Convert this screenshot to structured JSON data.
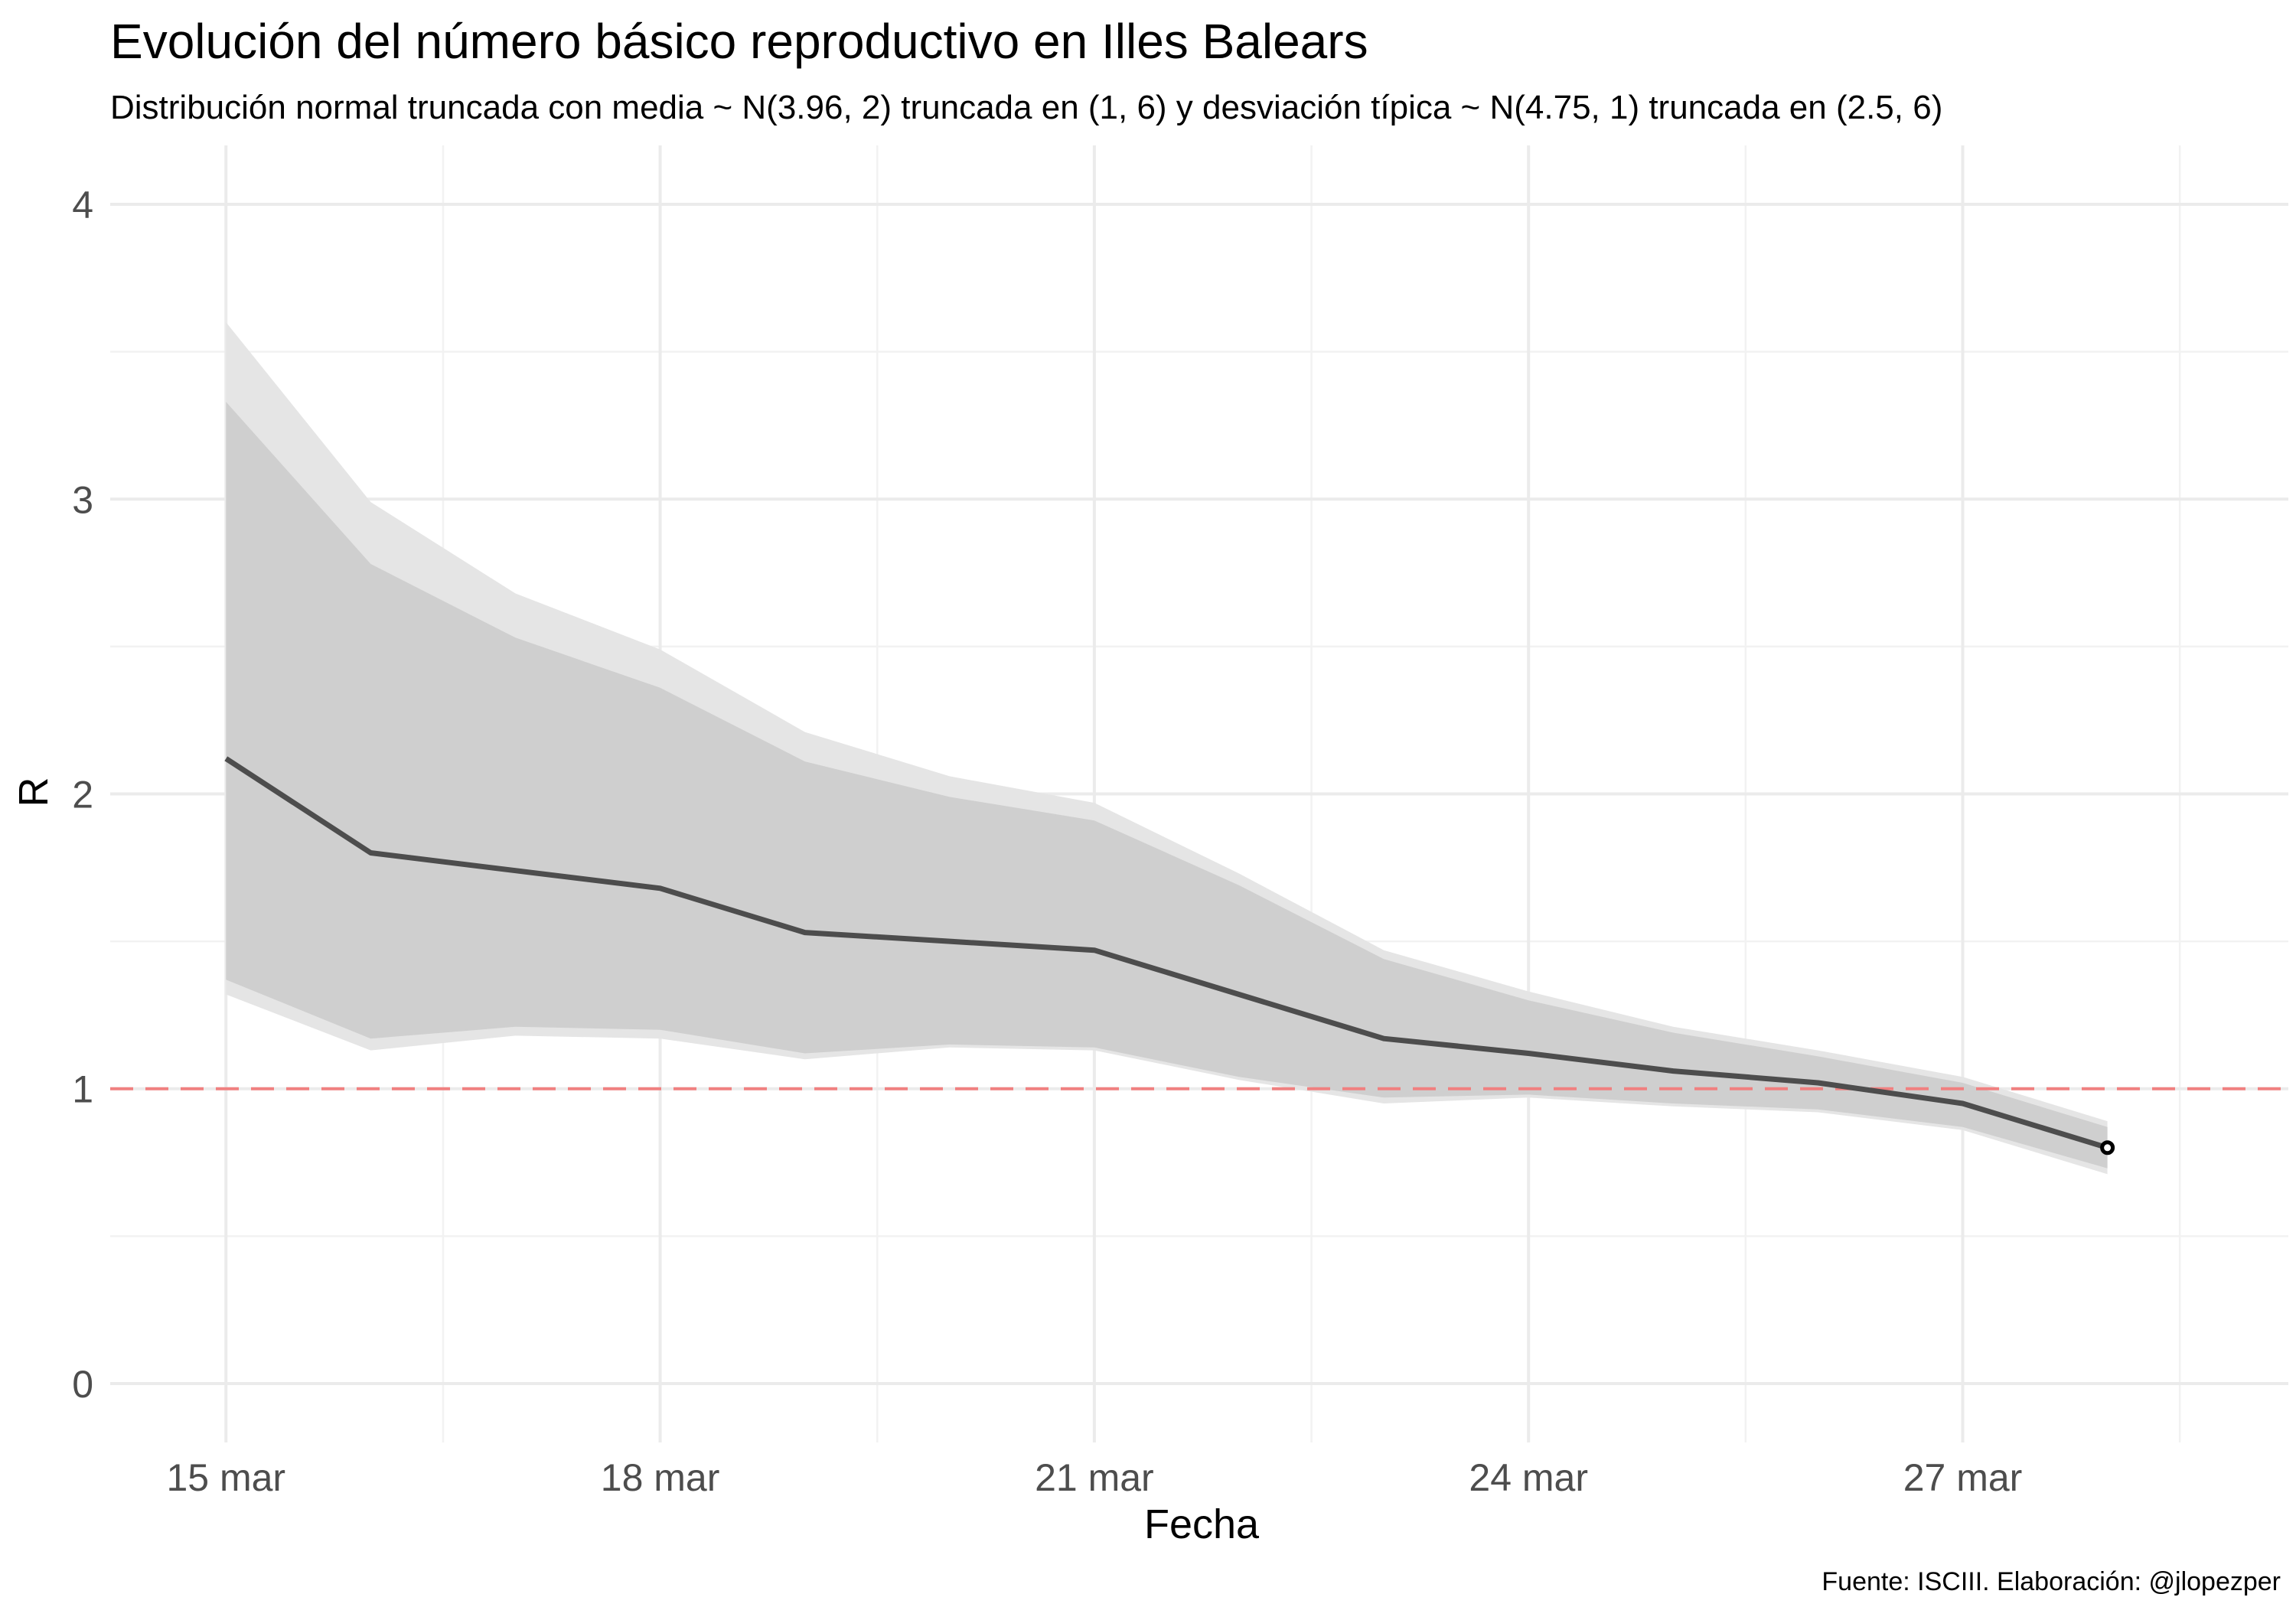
{
  "chart_data": {
    "type": "line",
    "title": "Evolución del número básico reproductivo en Illes Balears",
    "subtitle": "Distribución normal truncada con media ~ N(3.96, 2) truncada en (1, 6) y desviación típica ~ N(4.75, 1) truncada en (2.5, 6)",
    "xlabel": "Fecha",
    "ylabel": "R",
    "caption": "Fuente: ISCIII. Elaboración: @jlopezper",
    "x_ticks": [
      {
        "label": "15 mar",
        "day": 15
      },
      {
        "label": "18 mar",
        "day": 18
      },
      {
        "label": "21 mar",
        "day": 21
      },
      {
        "label": "24 mar",
        "day": 24
      },
      {
        "label": "27 mar",
        "day": 27
      }
    ],
    "y_ticks": [
      0,
      1,
      2,
      3,
      4
    ],
    "xlim": [
      "2020-03-14",
      "2020-03-29"
    ],
    "ylim": [
      -0.2,
      4.2
    ],
    "grid": true,
    "reference_line": {
      "y": 1,
      "color": "#f08080",
      "style": "dashed"
    },
    "dates": [
      "15 mar",
      "16 mar",
      "17 mar",
      "18 mar",
      "19 mar",
      "20 mar",
      "21 mar",
      "22 mar",
      "23 mar",
      "24 mar",
      "25 mar",
      "26 mar",
      "27 mar",
      "28 mar"
    ],
    "days": [
      15,
      16,
      17,
      18,
      19,
      20,
      21,
      22,
      23,
      24,
      25,
      26,
      27,
      28
    ],
    "series": [
      {
        "name": "R",
        "color": "#4d4d4d",
        "values": [
          2.12,
          1.8,
          1.74,
          1.68,
          1.53,
          1.5,
          1.47,
          1.32,
          1.17,
          1.12,
          1.06,
          1.02,
          0.95,
          0.8
        ]
      }
    ],
    "bands": [
      {
        "role": "outer",
        "color": "#e5e5e5",
        "upper": [
          3.6,
          2.99,
          2.68,
          2.49,
          2.21,
          2.06,
          1.97,
          1.73,
          1.47,
          1.33,
          1.21,
          1.13,
          1.04,
          0.89
        ],
        "lower": [
          1.32,
          1.13,
          1.18,
          1.17,
          1.1,
          1.14,
          1.13,
          1.03,
          0.95,
          0.97,
          0.94,
          0.92,
          0.86,
          0.71
        ]
      },
      {
        "role": "inner",
        "color": "#cfcfcf",
        "upper": [
          3.33,
          2.78,
          2.53,
          2.36,
          2.11,
          1.99,
          1.91,
          1.69,
          1.44,
          1.3,
          1.19,
          1.11,
          1.02,
          0.87
        ],
        "lower": [
          1.37,
          1.17,
          1.21,
          1.2,
          1.12,
          1.15,
          1.14,
          1.04,
          0.97,
          0.98,
          0.95,
          0.93,
          0.87,
          0.73
        ]
      }
    ],
    "end_marker": {
      "date": "28 mar",
      "value": 0.8
    }
  }
}
